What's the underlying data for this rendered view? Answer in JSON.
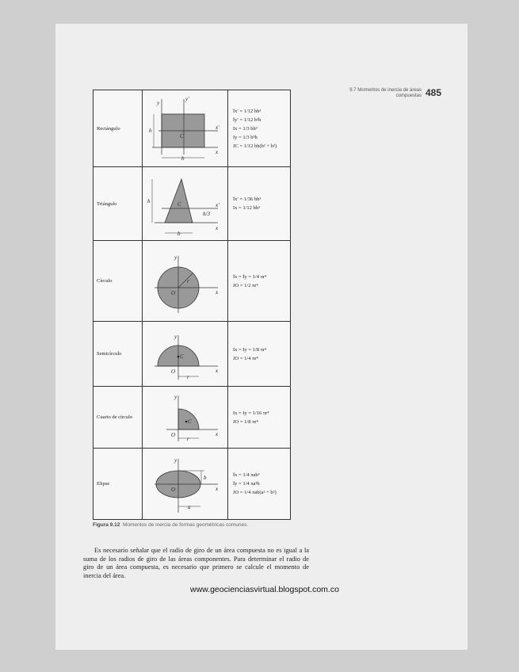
{
  "header": {
    "section": "9.7 Momentos de inercia de áreas compuestas",
    "page_number": "485"
  },
  "table": {
    "rows": [
      {
        "name": "Rectángulo",
        "formulas": [
          "Īx′ = 1/12 bh³",
          "Īy′ = 1/12 b³h",
          "Ix = 1/3 bh³",
          "Iy = 1/3 b³h",
          "JC = 1/12 bh(b² + h²)"
        ]
      },
      {
        "name": "Triángulo",
        "formulas": [
          "Īx′ = 1/36 bh³",
          "Ix = 1/12 bh³"
        ]
      },
      {
        "name": "Círculo",
        "formulas": [
          "Īx = Īy = 1/4 πr⁴",
          "JO = 1/2 πr⁴"
        ]
      },
      {
        "name": "Semicírculo",
        "formulas": [
          "Ix = Iy = 1/8 πr⁴",
          "JO = 1/4 πr⁴"
        ]
      },
      {
        "name": "Cuarto de círculo",
        "formulas": [
          "Ix = Iy = 1/16 πr⁴",
          "JO = 1/8 πr⁴"
        ]
      },
      {
        "name": "Elipse",
        "formulas": [
          "Īx = 1/4 πab³",
          "Īy = 1/4 πa³b",
          "JO = 1/4 πab(a² + b²)"
        ]
      }
    ]
  },
  "caption": {
    "label": "Figura 9.12",
    "text": "Momentos de inercia de formas geométricas comunes."
  },
  "paragraph": "Es necesario señalar que el radio de giro de un área compuesta no es igual a la suma de los radios de giro de las áreas componentes. Para determinar el radio de giro de un área compuesta, es necesario que primero se calcule el momento de inercia del área.",
  "watermark": "www.geocienciasvirtual.blogspot.com.co"
}
